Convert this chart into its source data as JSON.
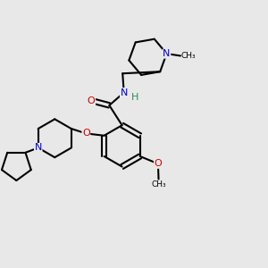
{
  "bg_color": "#e8e8e8",
  "bond_color": "#000000",
  "bond_width": 1.5,
  "atom_colors": {
    "O": "#cc0000",
    "N": "#0000cc",
    "H": "#2e8b57",
    "C": "#000000"
  },
  "font_size": 8.0,
  "figsize": [
    3.0,
    3.0
  ],
  "dpi": 100,
  "xlim": [
    0,
    1
  ],
  "ylim": [
    0,
    1
  ]
}
